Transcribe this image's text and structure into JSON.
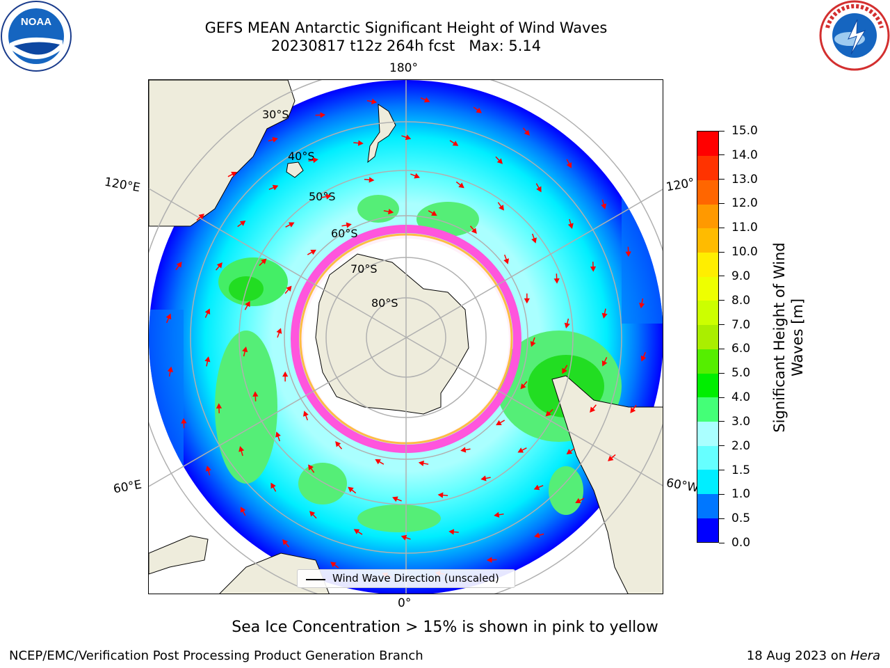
{
  "title": {
    "line1": "GEFS MEAN Antarctic Significant Height of Wind Waves",
    "line2": "20230817 t12z 264h fcst   Max: 5.14"
  },
  "logos": {
    "left": "NOAA",
    "right": "NATIONAL WEATHER SERVICE"
  },
  "map": {
    "projection": "south-polar-stereographic",
    "lon_labels": {
      "top": "180°",
      "bottom": "0°",
      "left_upper": "120°E",
      "left_lower": "60°E",
      "right_upper": "120°",
      "right_lower": "60°W"
    },
    "lat_labels": [
      "30°S",
      "40°S",
      "50°S",
      "60°S",
      "70°S",
      "80°S"
    ],
    "legend_label": "Wind Wave Direction (unscaled)",
    "colors": {
      "land": "#eeecdc",
      "ice_edge": "#ff44cc",
      "arrows": "#ff0000",
      "gridlines": "#b0b0b0"
    }
  },
  "colorbar": {
    "label": "Significant Height of Wind Waves [m]",
    "label_line1": "Significant Height of Wind",
    "label_line2": "Waves [m]",
    "ticks": [
      "0.0",
      "0.5",
      "1.0",
      "1.5",
      "2.0",
      "3.0",
      "4.0",
      "5.0",
      "6.0",
      "7.0",
      "8.0",
      "9.0",
      "10.0",
      "11.0",
      "12.0",
      "13.0",
      "14.0",
      "15.0"
    ],
    "colors": [
      "#0000ff",
      "#0077ff",
      "#00eeff",
      "#66ffff",
      "#aaffff",
      "#44ff77",
      "#00ee00",
      "#55ee00",
      "#aaee00",
      "#ccff00",
      "#eeff00",
      "#ffee00",
      "#ffbb00",
      "#ff9900",
      "#ff6600",
      "#ff3300",
      "#ff0000"
    ]
  },
  "note": "Sea Ice Concentration > 15% is shown in pink to yellow",
  "footer": {
    "left": "NCEP/EMC/Verification Post Processing Product Generation Branch",
    "date": "18 Aug 2023 on ",
    "machine": "Hera"
  }
}
